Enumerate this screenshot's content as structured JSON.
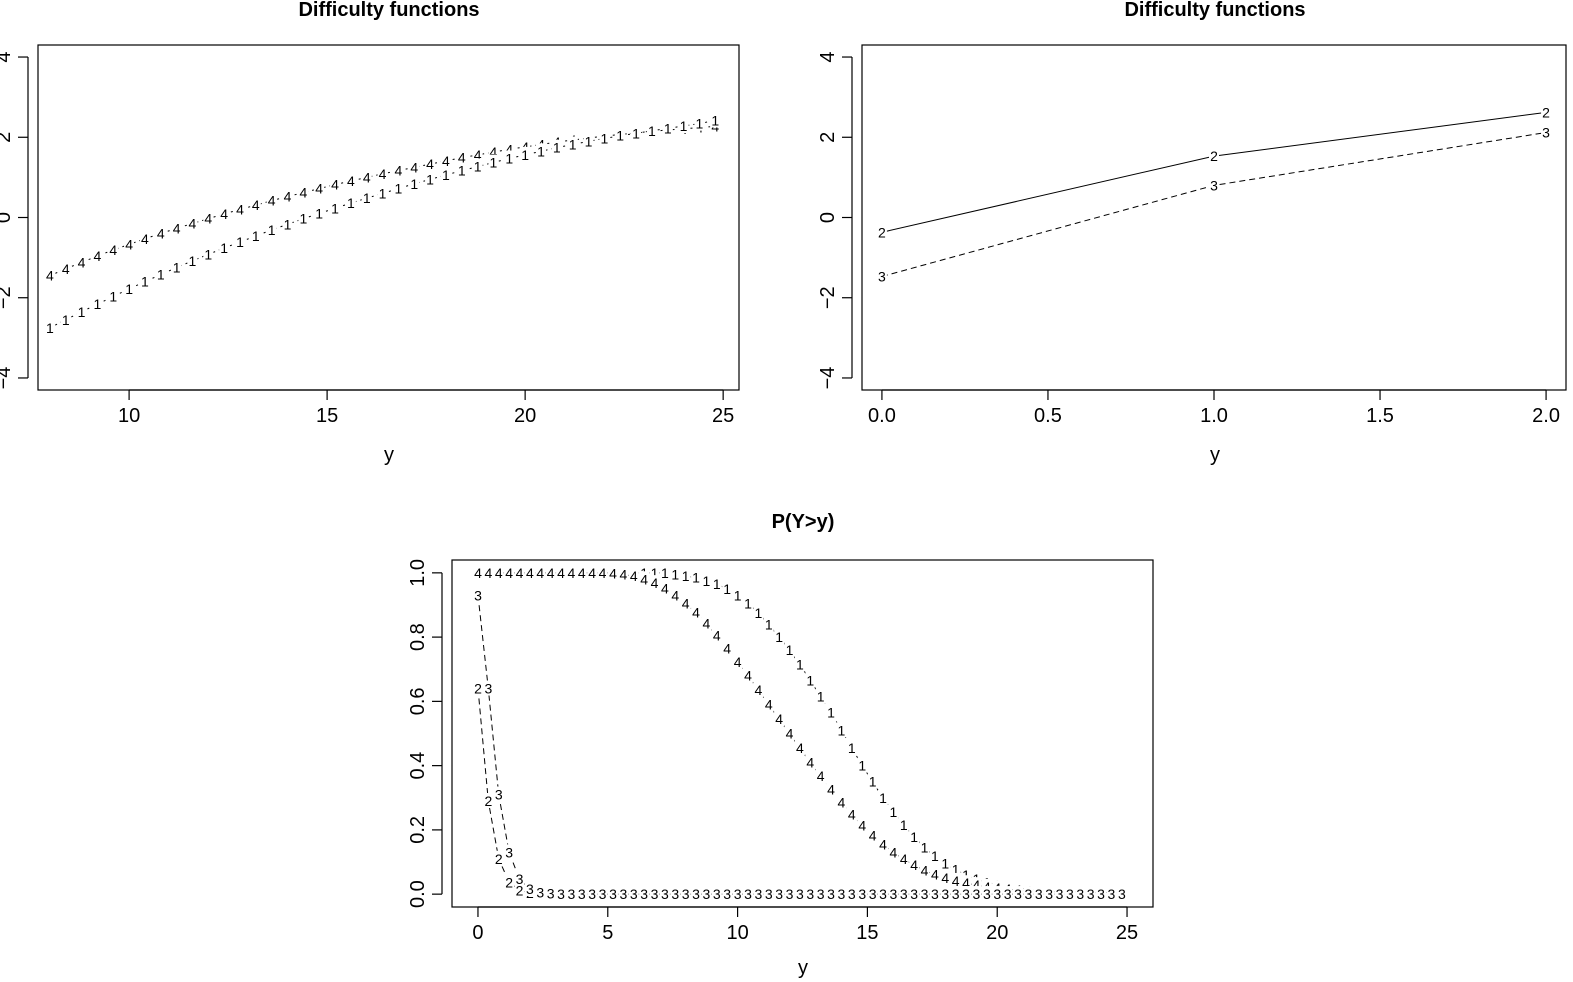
{
  "chart_data": [
    {
      "type": "line",
      "title": "Difficulty functions",
      "xlabel": "y",
      "ylabel": "",
      "xlim": [
        7.7,
        25.4
      ],
      "ylim": [
        -4.3,
        4.3
      ],
      "x_ticks": [
        "10",
        "15",
        "20",
        "25"
      ],
      "y_ticks": [
        "−4",
        "−2",
        "0",
        "2",
        "4"
      ],
      "point_label_style": "character",
      "series": [
        {
          "marker": "4",
          "x": [
            8,
            8.4,
            8.8,
            9.2,
            9.6,
            10,
            10.4,
            10.8,
            11.2,
            11.6,
            12,
            12.4,
            12.8,
            13.2,
            13.6,
            14,
            14.4,
            14.8,
            15.2,
            15.6,
            16,
            16.4,
            16.8,
            17.2,
            17.6,
            18,
            18.4,
            18.8,
            19.2,
            19.6,
            20,
            20.4,
            20.8,
            21.2,
            21.6,
            22,
            22.4,
            22.8,
            23.2,
            23.6,
            24,
            24.4,
            24.8
          ],
          "values": [
            -1.45,
            -1.28,
            -1.12,
            -0.96,
            -0.81,
            -0.67,
            -0.53,
            -0.4,
            -0.27,
            -0.15,
            -0.03,
            0.09,
            0.2,
            0.31,
            0.42,
            0.52,
            0.62,
            0.72,
            0.82,
            0.91,
            1.0,
            1.09,
            1.17,
            1.25,
            1.33,
            1.41,
            1.49,
            1.56,
            1.63,
            1.7,
            1.76,
            1.82,
            1.88,
            1.93,
            1.98,
            2.03,
            2.07,
            2.11,
            2.15,
            2.18,
            2.21,
            2.24,
            2.27
          ]
        },
        {
          "marker": "1",
          "x": [
            8,
            8.4,
            8.8,
            9.2,
            9.6,
            10,
            10.4,
            10.8,
            11.2,
            11.6,
            12,
            12.4,
            12.8,
            13.2,
            13.6,
            14,
            14.4,
            14.8,
            15.2,
            15.6,
            16,
            16.4,
            16.8,
            17.2,
            17.6,
            18,
            18.4,
            18.8,
            19.2,
            19.6,
            20,
            20.4,
            20.8,
            21.2,
            21.6,
            22,
            22.4,
            22.8,
            23.2,
            23.6,
            24,
            24.4,
            24.8
          ],
          "values": [
            -2.75,
            -2.55,
            -2.35,
            -2.16,
            -1.97,
            -1.78,
            -1.6,
            -1.42,
            -1.25,
            -1.08,
            -0.92,
            -0.76,
            -0.61,
            -0.46,
            -0.31,
            -0.17,
            -0.03,
            0.1,
            0.23,
            0.36,
            0.48,
            0.6,
            0.72,
            0.84,
            0.95,
            1.06,
            1.17,
            1.27,
            1.37,
            1.47,
            1.56,
            1.65,
            1.74,
            1.82,
            1.9,
            1.97,
            2.04,
            2.1,
            2.16,
            2.22,
            2.28,
            2.34,
            2.42
          ]
        }
      ]
    },
    {
      "type": "line",
      "title": "Difficulty functions",
      "xlabel": "y",
      "ylabel": "",
      "xlim": [
        -0.06,
        2.06
      ],
      "ylim": [
        -4.3,
        4.3
      ],
      "x_ticks": [
        "0.0",
        "0.5",
        "1.0",
        "1.5",
        "2.0"
      ],
      "y_ticks": [
        "−4",
        "−2",
        "0",
        "2",
        "4"
      ],
      "series": [
        {
          "marker": "2",
          "line": "solid",
          "x": [
            0,
            1,
            2
          ],
          "values": [
            -0.37,
            1.53,
            2.62
          ]
        },
        {
          "marker": "3",
          "line": "dashed",
          "x": [
            0,
            1,
            2
          ],
          "values": [
            -1.47,
            0.8,
            2.12
          ]
        }
      ]
    },
    {
      "type": "line",
      "title": "P(Y>y)",
      "xlabel": "y",
      "ylabel": "",
      "xlim": [
        -1,
        26
      ],
      "ylim": [
        -0.04,
        1.04
      ],
      "x_ticks": [
        "0",
        "5",
        "10",
        "15",
        "20",
        "25"
      ],
      "y_ticks": [
        "0.0",
        "0.2",
        "0.4",
        "0.6",
        "0.8",
        "1.0"
      ],
      "series": [
        {
          "marker": "1",
          "line": "dotdash",
          "x": [
            0,
            0.4,
            0.8,
            1.2,
            1.6,
            2,
            2.4,
            2.8,
            3.2,
            3.6,
            4,
            4.4,
            4.8,
            5.2,
            5.6,
            6,
            6.4,
            6.8,
            7.2,
            7.6,
            8,
            8.4,
            8.8,
            9.2,
            9.6,
            10,
            10.4,
            10.8,
            11.2,
            11.6,
            12,
            12.4,
            12.8,
            13.2,
            13.6,
            14,
            14.4,
            14.8,
            15.2,
            15.6,
            16,
            16.4,
            16.8,
            17.2,
            17.6,
            18,
            18.4,
            18.8,
            19.2,
            19.6,
            20,
            20.4,
            20.8,
            21.2,
            21.6,
            22,
            22.4,
            22.8,
            23.2,
            23.6,
            24,
            24.4,
            24.8
          ],
          "values": [
            1.0,
            1.0,
            1.0,
            1.0,
            1.0,
            1.0,
            1.0,
            1.0,
            1.0,
            1.0,
            1.0,
            1.0,
            1.0,
            1.0,
            1.0,
            1.0,
            1.0,
            1.0,
            1.0,
            0.995,
            0.99,
            0.985,
            0.975,
            0.965,
            0.95,
            0.93,
            0.905,
            0.875,
            0.84,
            0.8,
            0.76,
            0.715,
            0.665,
            0.615,
            0.565,
            0.51,
            0.455,
            0.4,
            0.35,
            0.3,
            0.255,
            0.215,
            0.178,
            0.145,
            0.118,
            0.095,
            0.076,
            0.06,
            0.047,
            0.037,
            0.03,
            0.024,
            0.019,
            0.016,
            0.013,
            0.011,
            0.009,
            0.008,
            0.007,
            0.006,
            0.005,
            0.005,
            0.004
          ]
        },
        {
          "marker": "4",
          "line": "dotted",
          "x": [
            0,
            0.4,
            0.8,
            1.2,
            1.6,
            2,
            2.4,
            2.8,
            3.2,
            3.6,
            4,
            4.4,
            4.8,
            5.2,
            5.6,
            6,
            6.4,
            6.8,
            7.2,
            7.6,
            8,
            8.4,
            8.8,
            9.2,
            9.6,
            10,
            10.4,
            10.8,
            11.2,
            11.6,
            12,
            12.4,
            12.8,
            13.2,
            13.6,
            14,
            14.4,
            14.8,
            15.2,
            15.6,
            16,
            16.4,
            16.8,
            17.2,
            17.6,
            18,
            18.4,
            18.8,
            19.2,
            19.6,
            20,
            20.4,
            20.8,
            21.2,
            21.6,
            22,
            22.4,
            22.8,
            23.2,
            23.6,
            24,
            24.4,
            24.8
          ],
          "values": [
            1.0,
            1.0,
            1.0,
            1.0,
            1.0,
            1.0,
            1.0,
            1.0,
            1.0,
            1.0,
            1.0,
            1.0,
            1.0,
            0.998,
            0.995,
            0.99,
            0.98,
            0.968,
            0.952,
            0.93,
            0.905,
            0.876,
            0.842,
            0.805,
            0.765,
            0.723,
            0.68,
            0.635,
            0.59,
            0.545,
            0.5,
            0.455,
            0.41,
            0.367,
            0.325,
            0.285,
            0.248,
            0.213,
            0.182,
            0.155,
            0.13,
            0.109,
            0.09,
            0.074,
            0.061,
            0.05,
            0.041,
            0.034,
            0.028,
            0.023,
            0.019,
            0.016,
            0.013,
            0.011,
            0.009,
            0.008,
            0.007,
            0.006,
            0.005,
            0.005,
            0.004,
            0.004,
            0.003
          ]
        },
        {
          "marker": "2",
          "line": "dashed",
          "x": [
            0,
            0.4,
            0.8,
            1.2,
            1.6,
            2,
            2.4,
            2.8,
            3.2,
            3.6,
            4,
            4.4,
            4.8,
            5.2,
            5.6,
            6,
            6.4,
            6.8,
            7.2,
            7.6,
            8,
            8.4,
            8.8,
            9.2,
            9.6,
            10,
            10.4,
            10.8,
            11.2,
            11.6,
            12,
            12.4,
            12.8,
            13.2,
            13.6,
            14,
            14.4,
            14.8,
            15.2,
            15.6,
            16,
            16.4,
            16.8,
            17.2,
            17.6,
            18,
            18.4,
            18.8,
            19.2,
            19.6,
            20,
            20.4,
            20.8,
            21.2,
            21.6,
            22,
            22.4,
            22.8,
            23.2,
            23.6,
            24,
            24.4,
            24.8
          ],
          "values": [
            0.64,
            0.29,
            0.11,
            0.037,
            0.012,
            0.004,
            0.001,
            0,
            0,
            0,
            0,
            0,
            0,
            0,
            0,
            0,
            0,
            0,
            0,
            0,
            0,
            0,
            0,
            0,
            0,
            0,
            0,
            0,
            0,
            0,
            0,
            0,
            0,
            0,
            0,
            0,
            0,
            0,
            0,
            0,
            0,
            0,
            0,
            0,
            0,
            0,
            0,
            0,
            0,
            0,
            0,
            0,
            0,
            0,
            0,
            0,
            0,
            0,
            0,
            0,
            0,
            0,
            0
          ]
        },
        {
          "marker": "3",
          "line": "dashed",
          "x": [
            0,
            0.4,
            0.8,
            1.2,
            1.6,
            2,
            2.4,
            2.8,
            3.2,
            3.6,
            4,
            4.4,
            4.8,
            5.2,
            5.6,
            6,
            6.4,
            6.8,
            7.2,
            7.6,
            8,
            8.4,
            8.8,
            9.2,
            9.6,
            10,
            10.4,
            10.8,
            11.2,
            11.6,
            12,
            12.4,
            12.8,
            13.2,
            13.6,
            14,
            14.4,
            14.8,
            15.2,
            15.6,
            16,
            16.4,
            16.8,
            17.2,
            17.6,
            18,
            18.4,
            18.8,
            19.2,
            19.6,
            20,
            20.4,
            20.8,
            21.2,
            21.6,
            22,
            22.4,
            22.8,
            23.2,
            23.6,
            24,
            24.4,
            24.8
          ],
          "values": [
            0.93,
            0.64,
            0.31,
            0.13,
            0.047,
            0.016,
            0.005,
            0.002,
            0,
            0,
            0,
            0,
            0,
            0,
            0,
            0,
            0,
            0,
            0,
            0,
            0,
            0,
            0,
            0,
            0,
            0,
            0,
            0,
            0,
            0,
            0,
            0,
            0,
            0,
            0,
            0,
            0,
            0,
            0,
            0,
            0,
            0,
            0,
            0,
            0,
            0,
            0,
            0,
            0,
            0,
            0,
            0,
            0,
            0,
            0,
            0,
            0,
            0,
            0,
            0,
            0,
            0,
            0
          ]
        }
      ]
    }
  ]
}
